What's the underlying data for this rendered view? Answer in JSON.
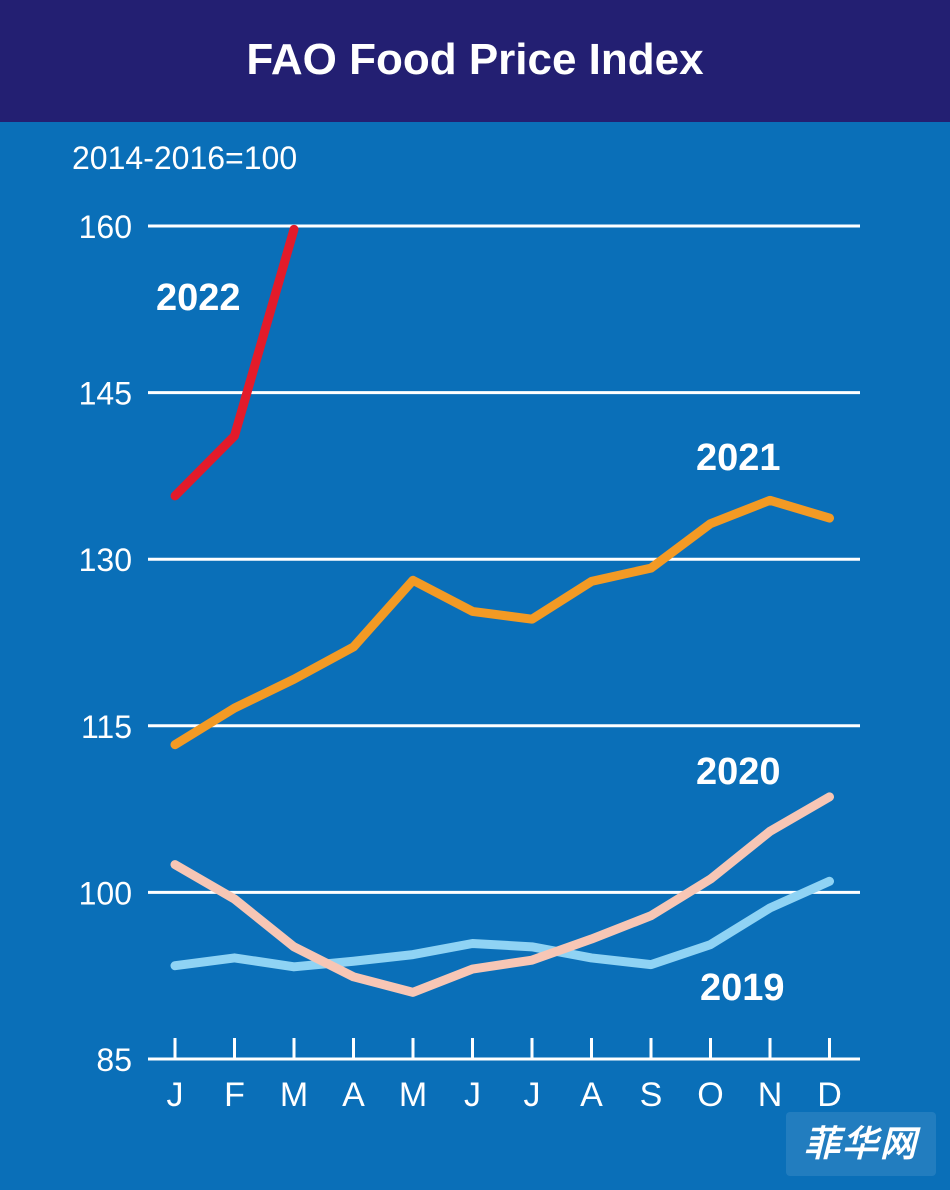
{
  "title": "FAO Food Price Index",
  "chart_data": {
    "type": "line",
    "title": "FAO Food Price Index",
    "unit_note": "2014-2016=100",
    "xlabel": "",
    "ylabel": "",
    "categories": [
      "J",
      "F",
      "M",
      "A",
      "M",
      "J",
      "J",
      "A",
      "S",
      "O",
      "N",
      "D"
    ],
    "yticks": [
      85,
      100,
      115,
      130,
      145,
      160
    ],
    "ylim": [
      85,
      160
    ],
    "grid": true,
    "series": [
      {
        "name": "2022",
        "color": "#e31b2a",
        "values": [
          135.7,
          141.1,
          159.7,
          null,
          null,
          null,
          null,
          null,
          null,
          null,
          null,
          null
        ]
      },
      {
        "name": "2021",
        "color": "#f39a24",
        "values": [
          113.3,
          116.6,
          119.2,
          122.1,
          128.1,
          125.3,
          124.6,
          128.0,
          129.2,
          133.2,
          135.3,
          133.7
        ]
      },
      {
        "name": "2020",
        "color": "#f7c6b5",
        "values": [
          102.5,
          99.4,
          95.1,
          92.4,
          91.0,
          93.1,
          93.9,
          95.8,
          97.9,
          101.2,
          105.5,
          108.6
        ]
      },
      {
        "name": "2019",
        "color": "#8fd3f4",
        "values": [
          93.4,
          94.1,
          93.3,
          93.8,
          94.4,
          95.4,
          95.1,
          94.1,
          93.5,
          95.3,
          98.6,
          101.0
        ]
      }
    ]
  },
  "watermark": "菲华网"
}
